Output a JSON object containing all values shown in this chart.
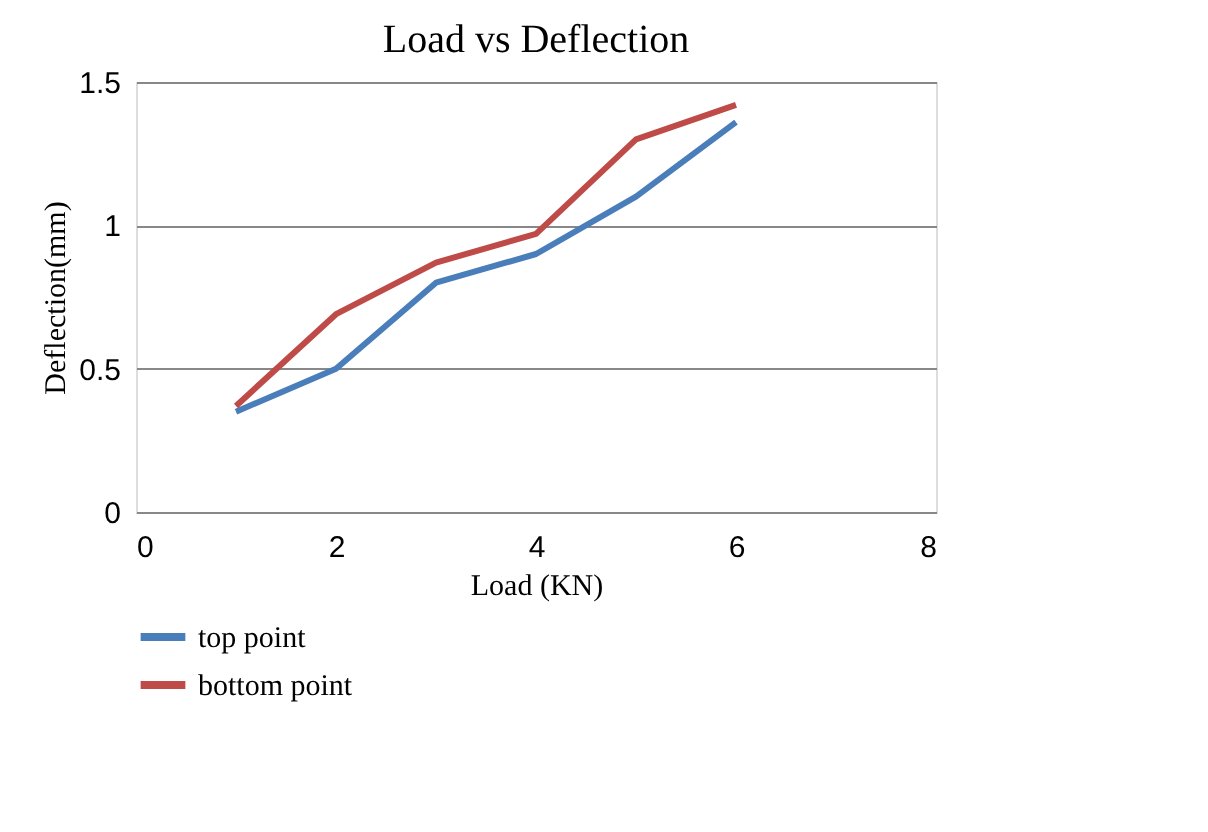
{
  "chart_data": {
    "type": "line",
    "title": "Load vs Deflection",
    "xlabel": "Load (KN)",
    "ylabel": "Deflection(mm)",
    "x": [
      1,
      2,
      3,
      4,
      5,
      6
    ],
    "series": [
      {
        "name": "top point",
        "color": "#4a7ebb",
        "values": [
          0.35,
          0.5,
          0.8,
          0.9,
          1.1,
          1.36
        ]
      },
      {
        "name": "bottom point",
        "color": "#be4b48",
        "values": [
          0.37,
          0.69,
          0.87,
          0.97,
          1.3,
          1.42
        ]
      }
    ],
    "xlim": [
      0,
      8
    ],
    "xticks": [
      0,
      2,
      4,
      6,
      8
    ],
    "ylim": [
      0,
      1.5
    ],
    "yticks": [
      0,
      0.5,
      1,
      1.5
    ],
    "grid": "y",
    "legend": "bottom",
    "marker": "none",
    "line_style": "solid"
  }
}
